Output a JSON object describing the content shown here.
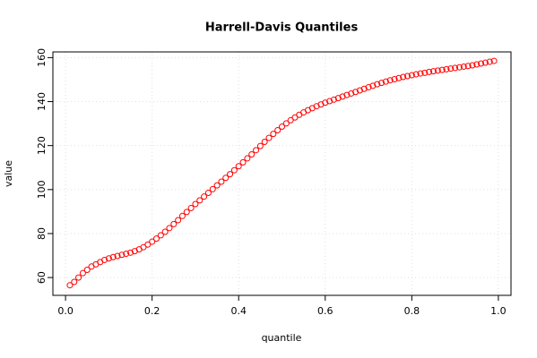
{
  "chart_data": {
    "type": "scatter",
    "title": "Harrell-Davis Quantiles",
    "x_label": "quantile",
    "y_label": "value",
    "x": [
      0.01,
      0.02,
      0.03,
      0.04,
      0.05,
      0.06,
      0.07,
      0.08,
      0.09,
      0.1,
      0.11,
      0.12,
      0.13,
      0.14,
      0.15,
      0.16,
      0.17,
      0.18,
      0.19,
      0.2,
      0.21,
      0.22,
      0.23,
      0.24,
      0.25,
      0.26,
      0.27,
      0.28,
      0.29,
      0.3,
      0.31,
      0.32,
      0.33,
      0.34,
      0.35,
      0.36,
      0.37,
      0.38,
      0.39,
      0.4,
      0.41,
      0.42,
      0.43,
      0.44,
      0.45,
      0.46,
      0.47,
      0.48,
      0.49,
      0.5,
      0.51,
      0.52,
      0.53,
      0.54,
      0.55,
      0.56,
      0.57,
      0.58,
      0.59,
      0.6,
      0.61,
      0.62,
      0.63,
      0.64,
      0.65,
      0.66,
      0.67,
      0.68,
      0.69,
      0.7,
      0.71,
      0.72,
      0.73,
      0.74,
      0.75,
      0.76,
      0.77,
      0.78,
      0.79,
      0.8,
      0.81,
      0.82,
      0.83,
      0.84,
      0.85,
      0.86,
      0.87,
      0.88,
      0.89,
      0.9,
      0.91,
      0.92,
      0.93,
      0.94,
      0.95,
      0.96,
      0.97,
      0.98,
      0.99
    ],
    "values": [
      56.5,
      58,
      60,
      62,
      63.5,
      65,
      66,
      67,
      68,
      68.7,
      69.3,
      69.8,
      70.3,
      70.8,
      71.3,
      72,
      72.8,
      73.8,
      75,
      76.3,
      77.7,
      79.2,
      80.8,
      82.5,
      84.3,
      86.1,
      88,
      89.8,
      91.6,
      93.4,
      95.1,
      96.8,
      98.5,
      100.2,
      101.9,
      103.6,
      105.3,
      107,
      108.8,
      110.6,
      112.4,
      114.2,
      116,
      117.9,
      119.8,
      121.7,
      123.5,
      125.3,
      127,
      128.6,
      130.1,
      131.5,
      132.8,
      134,
      135.1,
      136.1,
      137,
      137.9,
      138.7,
      139.5,
      140.2,
      140.9,
      141.6,
      142.3,
      143,
      143.7,
      144.4,
      145.1,
      145.8,
      146.5,
      147.2,
      147.9,
      148.5,
      149.1,
      149.7,
      150.2,
      150.7,
      151.2,
      151.6,
      152,
      152.4,
      152.8,
      153.1,
      153.5,
      153.8,
      154.1,
      154.4,
      154.7,
      155,
      155.3,
      155.6,
      155.9,
      156.2,
      156.5,
      156.9,
      157.3,
      157.7,
      158.1,
      158.5
    ],
    "color": "#ff0000",
    "xlim": [
      -0.0292,
      1.0292
    ],
    "ylim": [
      51.9,
      162.6
    ],
    "xticks": [
      {
        "value": 0,
        "label": "0.0"
      },
      0.2,
      0.4,
      0.6,
      0.8,
      {
        "value": 1,
        "label": "1.0"
      }
    ],
    "yticks": [
      60,
      80,
      100,
      120,
      140,
      160
    ],
    "grid": true
  }
}
